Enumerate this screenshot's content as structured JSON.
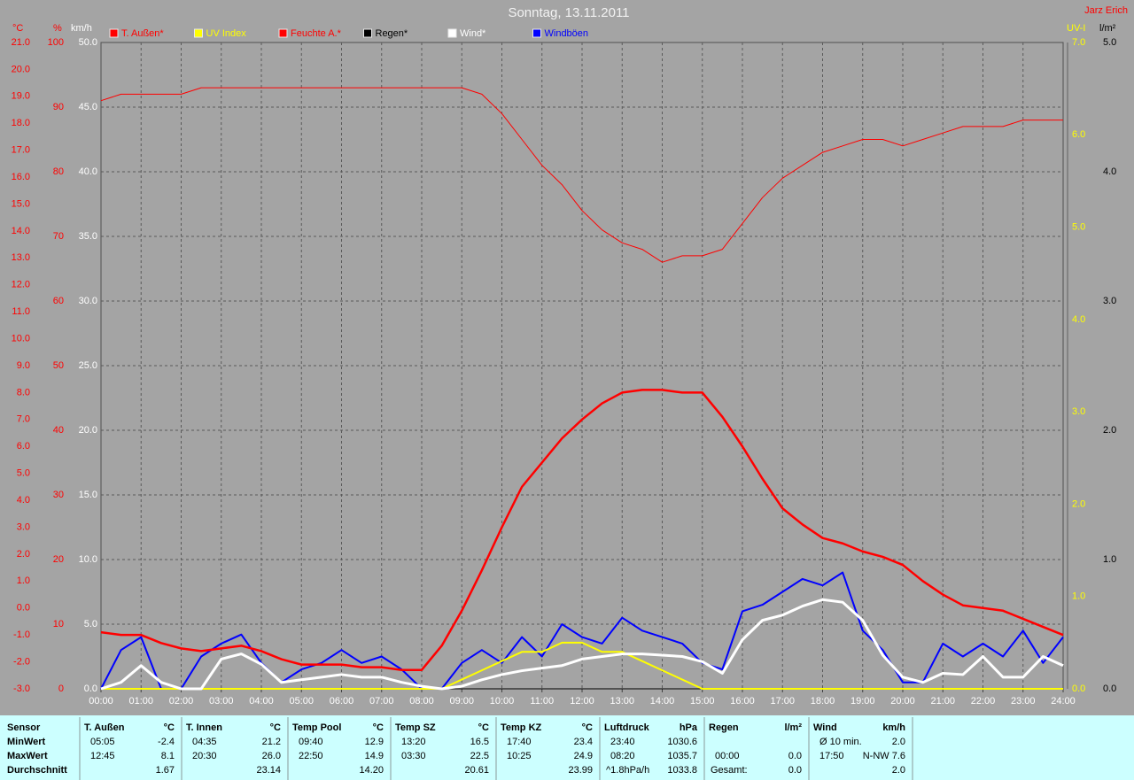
{
  "chart_data": {
    "type": "line",
    "title": "Sonntag, 13.11.2011",
    "author": "Jarz Erich",
    "grid": true,
    "xlim": [
      0,
      24
    ],
    "xticks": [
      {
        "value": 0,
        "label": "00:00"
      },
      {
        "value": 1,
        "label": "01:00"
      },
      {
        "value": 2,
        "label": "02:00"
      },
      {
        "value": 3,
        "label": "03:00"
      },
      {
        "value": 4,
        "label": "04:00"
      },
      {
        "value": 5,
        "label": "05:00"
      },
      {
        "value": 6,
        "label": "06:00"
      },
      {
        "value": 7,
        "label": "07:00"
      },
      {
        "value": 8,
        "label": "08:00"
      },
      {
        "value": 9,
        "label": "09:00"
      },
      {
        "value": 10,
        "label": "10:00"
      },
      {
        "value": 11,
        "label": "11:00"
      },
      {
        "value": 12,
        "label": "12:00"
      },
      {
        "value": 13,
        "label": "13:00"
      },
      {
        "value": 14,
        "label": "14:00"
      },
      {
        "value": 15,
        "label": "15:00"
      },
      {
        "value": 16,
        "label": "16:00"
      },
      {
        "value": 17,
        "label": "17:00"
      },
      {
        "value": 18,
        "label": "18:00"
      },
      {
        "value": 19,
        "label": "19:00"
      },
      {
        "value": 20,
        "label": "20:00"
      },
      {
        "value": 21,
        "label": "21:00"
      },
      {
        "value": 22,
        "label": "22:00"
      },
      {
        "value": 23,
        "label": "23:00"
      },
      {
        "value": 24,
        "label": "24:00"
      }
    ],
    "axes": [
      {
        "label": "°C",
        "color": "#ff0000",
        "lim": [
          -3,
          21
        ],
        "ticks": [
          {
            "value": -3,
            "label": "-3.0"
          },
          {
            "value": -2,
            "label": "-2.0"
          },
          {
            "value": -1,
            "label": "-1.0"
          },
          {
            "value": 0,
            "label": "0.0"
          },
          {
            "value": 1,
            "label": "1.0"
          },
          {
            "value": 2,
            "label": "2.0"
          },
          {
            "value": 3,
            "label": "3.0"
          },
          {
            "value": 4,
            "label": "4.0"
          },
          {
            "value": 5,
            "label": "5.0"
          },
          {
            "value": 6,
            "label": "6.0"
          },
          {
            "value": 7,
            "label": "7.0"
          },
          {
            "value": 8,
            "label": "8.0"
          },
          {
            "value": 9,
            "label": "9.0"
          },
          {
            "value": 10,
            "label": "10.0"
          },
          {
            "value": 11,
            "label": "11.0"
          },
          {
            "value": 12,
            "label": "12.0"
          },
          {
            "value": 13,
            "label": "13.0"
          },
          {
            "value": 14,
            "label": "14.0"
          },
          {
            "value": 15,
            "label": "15.0"
          },
          {
            "value": 16,
            "label": "16.0"
          },
          {
            "value": 17,
            "label": "17.0"
          },
          {
            "value": 18,
            "label": "18.0"
          },
          {
            "value": 19,
            "label": "19.0"
          },
          {
            "value": 20,
            "label": "20.0"
          },
          {
            "value": 21,
            "label": "21.0"
          }
        ]
      },
      {
        "label": "%",
        "color": "#ff0000",
        "lim": [
          0,
          100
        ],
        "ticks": [
          0,
          10,
          20,
          30,
          40,
          50,
          60,
          70,
          80,
          90,
          100
        ]
      },
      {
        "label": "km/h",
        "color": "#ffffff",
        "lim": [
          0,
          50
        ],
        "ticks": [
          {
            "value": 0,
            "label": "0.0"
          },
          {
            "value": 5,
            "label": "5.0"
          },
          {
            "value": 10,
            "label": "10.0"
          },
          {
            "value": 15,
            "label": "15.0"
          },
          {
            "value": 20,
            "label": "20.0"
          },
          {
            "value": 25,
            "label": "25.0"
          },
          {
            "value": 30,
            "label": "30.0"
          },
          {
            "value": 35,
            "label": "35.0"
          },
          {
            "value": 40,
            "label": "40.0"
          },
          {
            "value": 45,
            "label": "45.0"
          },
          {
            "value": 50,
            "label": "50.0"
          }
        ]
      },
      {
        "label": "UV-I",
        "color": "#ffff00",
        "lim": [
          0,
          7
        ],
        "ticks": [
          {
            "value": 0,
            "label": "0.0"
          },
          {
            "value": 1,
            "label": "1.0"
          },
          {
            "value": 2,
            "label": "2.0"
          },
          {
            "value": 3,
            "label": "3.0"
          },
          {
            "value": 4,
            "label": "4.0"
          },
          {
            "value": 5,
            "label": "5.0"
          },
          {
            "value": 6,
            "label": "6.0"
          },
          {
            "value": 7,
            "label": "7.0"
          }
        ]
      },
      {
        "label": "l/m²",
        "color": "#000000",
        "lim": [
          0,
          5
        ],
        "ticks": [
          {
            "value": 0,
            "label": "0.0"
          },
          {
            "value": 1,
            "label": "1.0"
          },
          {
            "value": 2,
            "label": "2.0"
          },
          {
            "value": 3,
            "label": "3.0"
          },
          {
            "value": 4,
            "label": "4.0"
          },
          {
            "value": 5,
            "label": "5.0"
          }
        ]
      }
    ],
    "x": [
      0,
      0.5,
      1,
      1.5,
      2,
      2.5,
      3,
      3.5,
      4,
      4.5,
      5,
      5.5,
      6,
      6.5,
      7,
      7.5,
      8,
      8.5,
      9,
      9.5,
      10,
      10.5,
      11,
      11.5,
      12,
      12.5,
      13,
      13.5,
      14,
      14.5,
      15,
      15.5,
      16,
      16.5,
      17,
      17.5,
      18,
      18.5,
      19,
      19.5,
      20,
      20.5,
      21,
      21.5,
      22,
      22.5,
      23,
      23.5,
      24
    ],
    "series": [
      {
        "name": "T. Außen*",
        "color": "#ff0000",
        "axis": 0,
        "width": 2.5,
        "values": [
          -0.9,
          -1.0,
          -1.0,
          -1.3,
          -1.5,
          -1.6,
          -1.5,
          -1.4,
          -1.6,
          -1.9,
          -2.1,
          -2.1,
          -2.1,
          -2.2,
          -2.2,
          -2.3,
          -2.3,
          -1.4,
          -0.1,
          1.4,
          3.0,
          4.5,
          5.4,
          6.3,
          7.0,
          7.6,
          8.0,
          8.1,
          8.1,
          8.0,
          8.0,
          7.1,
          6.0,
          4.8,
          3.7,
          3.1,
          2.6,
          2.4,
          2.1,
          1.9,
          1.6,
          1.0,
          0.5,
          0.1,
          0.0,
          -0.1,
          -0.4,
          -0.7,
          -1.0
        ]
      },
      {
        "name": "UV Index",
        "color": "#ffff00",
        "axis": 3,
        "width": 2,
        "values": [
          0,
          0,
          0,
          0,
          0,
          0,
          0,
          0,
          0,
          0,
          0,
          0,
          0,
          0,
          0,
          0,
          0,
          0,
          0.1,
          0.2,
          0.3,
          0.4,
          0.4,
          0.5,
          0.5,
          0.4,
          0.4,
          0.3,
          0.2,
          0.1,
          0,
          0,
          0,
          0,
          0,
          0,
          0,
          0,
          0,
          0,
          0,
          0,
          0,
          0,
          0,
          0,
          0,
          0,
          0
        ]
      },
      {
        "name": "Feuchte A.*",
        "color": "#ff0000",
        "axis": 1,
        "width": 1,
        "values": [
          91,
          92,
          92,
          92,
          92,
          93,
          93,
          93,
          93,
          93,
          93,
          93,
          93,
          93,
          93,
          93,
          93,
          93,
          93,
          92,
          89,
          85,
          81,
          78,
          74,
          71,
          69,
          68,
          66,
          67,
          67,
          68,
          72,
          76,
          79,
          81,
          83,
          84,
          85,
          85,
          84,
          85,
          86,
          87,
          87,
          87,
          88,
          88,
          88
        ]
      },
      {
        "name": "Regen*",
        "color": "#000000",
        "axis": 4,
        "width": 1,
        "values": [
          0,
          0,
          0,
          0,
          0,
          0,
          0,
          0,
          0,
          0,
          0,
          0,
          0,
          0,
          0,
          0,
          0,
          0,
          0,
          0,
          0,
          0,
          0,
          0,
          0,
          0,
          0,
          0,
          0,
          0,
          0,
          0,
          0,
          0,
          0,
          0,
          0,
          0,
          0,
          0,
          0,
          0,
          0,
          0,
          0,
          0,
          0,
          0,
          0
        ]
      },
      {
        "name": "Wind*",
        "color": "#ffffff",
        "axis": 2,
        "width": 3,
        "values": [
          0.0,
          0.5,
          1.8,
          0.5,
          0.0,
          0.0,
          2.3,
          2.7,
          1.9,
          0.5,
          0.7,
          0.9,
          1.1,
          0.9,
          0.9,
          0.5,
          0.2,
          0.0,
          0.2,
          0.7,
          1.1,
          1.4,
          1.6,
          1.8,
          2.3,
          2.5,
          2.7,
          2.7,
          2.6,
          2.5,
          2.1,
          1.2,
          3.8,
          5.3,
          5.7,
          6.4,
          6.9,
          6.7,
          5.3,
          2.6,
          0.9,
          0.5,
          1.2,
          1.1,
          2.5,
          0.9,
          0.9,
          2.5,
          1.8
        ]
      },
      {
        "name": "Windböen",
        "color": "#0000ff",
        "axis": 2,
        "width": 2,
        "values": [
          0.0,
          3.0,
          4.0,
          0.0,
          0.0,
          2.5,
          3.5,
          4.2,
          2.0,
          0.5,
          1.5,
          2.0,
          3.0,
          2.0,
          2.5,
          1.5,
          0.0,
          0.0,
          2.0,
          3.0,
          2.0,
          4.0,
          2.5,
          5.0,
          4.0,
          3.5,
          5.5,
          4.5,
          4.0,
          3.5,
          2.0,
          1.5,
          6.0,
          6.5,
          7.5,
          8.5,
          8.0,
          9.0,
          4.5,
          3.0,
          0.5,
          0.5,
          3.5,
          2.5,
          3.5,
          2.5,
          4.5,
          2.0,
          4.0
        ]
      }
    ]
  },
  "table": {
    "row_labels": [
      "Sensor",
      "MinWert",
      "MaxWert",
      "Durchschnitt"
    ],
    "columns": [
      {
        "name": "T. Außen",
        "unit": "°C",
        "rows": [
          [
            "05:05",
            "-2.4"
          ],
          [
            "12:45",
            "8.1"
          ],
          [
            null,
            "1.67"
          ]
        ]
      },
      {
        "name": "T. Innen",
        "unit": "°C",
        "rows": [
          [
            "04:35",
            "21.2"
          ],
          [
            "20:30",
            "26.0"
          ],
          [
            null,
            "23.14"
          ]
        ]
      },
      {
        "name": "Temp Pool",
        "unit": "°C",
        "rows": [
          [
            "09:40",
            "12.9"
          ],
          [
            "22:50",
            "14.9"
          ],
          [
            null,
            "14.20"
          ]
        ]
      },
      {
        "name": "Temp SZ",
        "unit": "°C",
        "rows": [
          [
            "13:20",
            "16.5"
          ],
          [
            "03:30",
            "22.5"
          ],
          [
            null,
            "20.61"
          ]
        ]
      },
      {
        "name": "Temp KZ",
        "unit": "°C",
        "rows": [
          [
            "17:40",
            "23.4"
          ],
          [
            "10:25",
            "24.9"
          ],
          [
            null,
            "23.99"
          ]
        ]
      },
      {
        "name": "Luftdruck",
        "unit": "hPa",
        "rows": [
          [
            "23:40",
            "1030.6"
          ],
          [
            "08:20",
            "1035.7"
          ],
          [
            "^1.8hPa/h",
            "1033.8"
          ]
        ]
      },
      {
        "name": "Regen",
        "unit": "l/m²",
        "rows": [
          [
            null,
            null
          ],
          [
            "00:00",
            "0.0"
          ],
          [
            "Gesamt:",
            "0.0"
          ]
        ]
      },
      {
        "name": "Wind",
        "unit": "km/h",
        "rows": [
          [
            "Ø 10 min.",
            "2.0"
          ],
          [
            "17:50",
            "N-NW 7.6"
          ],
          [
            null,
            "2.0"
          ]
        ]
      }
    ]
  }
}
